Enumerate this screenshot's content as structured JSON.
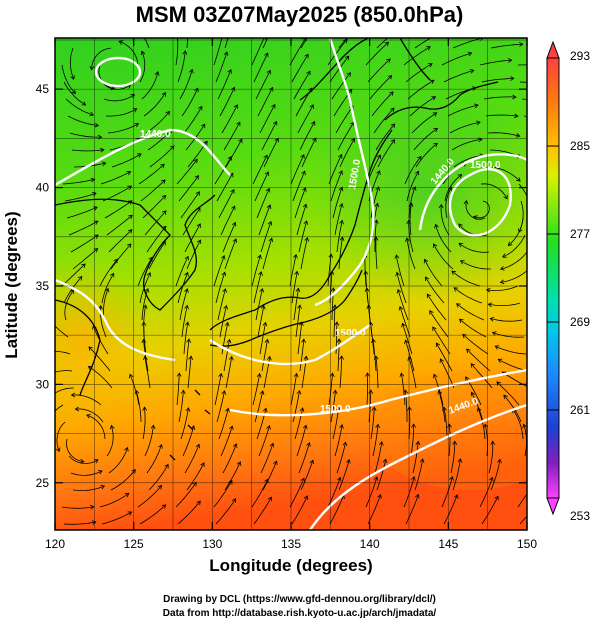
{
  "title": "MSM 03Z07May2025 (850.0hPa)",
  "x_axis": {
    "label": "Longitude (degrees)",
    "ticks": [
      "120",
      "125",
      "130",
      "135",
      "140",
      "145",
      "150"
    ]
  },
  "y_axis": {
    "label": "Latitude  (degrees)",
    "ticks": [
      "25",
      "30",
      "35",
      "40",
      "45"
    ]
  },
  "colorbar": {
    "ticks": [
      "293",
      "285",
      "277",
      "269",
      "261",
      "253"
    ],
    "colors": [
      "#ff4040",
      "#ff8a1a",
      "#ffcc00",
      "#c8f000",
      "#20e020",
      "#00e0a0",
      "#00c8e0",
      "#1e90ff",
      "#1e40d0",
      "#6a20c0",
      "#c020c0",
      "#ff40ff"
    ]
  },
  "contour_labels": [
    "1440.0",
    "1500.0",
    "1440.0",
    "1500.0",
    "1500.0",
    "1440.0",
    "1500.0"
  ],
  "credits": {
    "line1": "Drawing by DCL (https://www.gfd-dennou.org/library/dcl/)",
    "line2": "Data from http://database.rish.kyoto-u.ac.jp/arch/jmadata/"
  },
  "map_colors": {
    "north": "#30d020",
    "mid": "#a0e000",
    "south": "#ff9a00",
    "far_south": "#ff5a10",
    "coast": "#000000",
    "contour": "#ffffff",
    "stream": "#000000"
  }
}
